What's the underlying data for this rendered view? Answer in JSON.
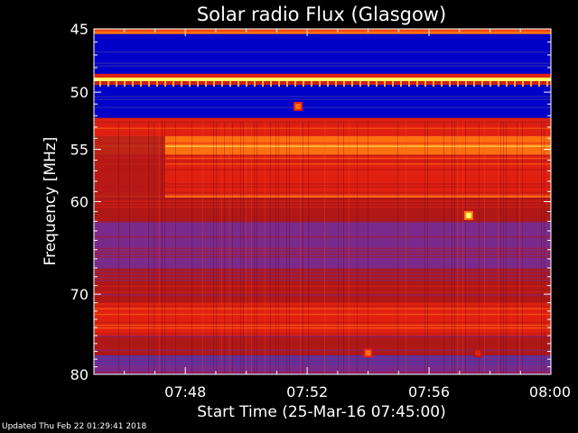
{
  "footer": {
    "updated": "Updated Thu Feb 22 01:29:41 2018"
  },
  "chart_data": {
    "type": "heatmap",
    "title": "Solar radio Flux (Glasgow)",
    "xlabel": "Start Time (25-Mar-16 07:45:00)",
    "ylabel": "Frequency [MHz]",
    "x_range": [
      "07:45:00",
      "08:00:00"
    ],
    "y_range": [
      45,
      80
    ],
    "y_scale": "log",
    "y_ticks": [
      45,
      50,
      55,
      60,
      70,
      80
    ],
    "x_ticks": [
      "07:48",
      "07:52",
      "07:56",
      "08:00"
    ],
    "x_tick_minutes": [
      48,
      52,
      56,
      60
    ],
    "colormap": [
      "#0000c8",
      "#3a3ab0",
      "#7a2a8a",
      "#b01818",
      "#e02010",
      "#ff7010",
      "#ffff60"
    ],
    "bands": [
      {
        "from": 45.0,
        "to": 45.4,
        "level": 0.75
      },
      {
        "from": 45.4,
        "to": 48.5,
        "level": 0.05
      },
      {
        "from": 48.5,
        "to": 48.8,
        "level": 0.7
      },
      {
        "from": 48.8,
        "to": 49.1,
        "level": 1.0
      },
      {
        "from": 49.1,
        "to": 49.4,
        "level": 0.65
      },
      {
        "from": 49.4,
        "to": 52.2,
        "level": 0.05
      },
      {
        "from": 52.2,
        "to": 52.8,
        "level": 0.6
      },
      {
        "from": 52.8,
        "to": 53.8,
        "level": 0.72
      },
      {
        "from": 53.8,
        "to": 55.5,
        "level": 0.85
      },
      {
        "from": 55.5,
        "to": 59.3,
        "level": 0.62
      },
      {
        "from": 59.3,
        "to": 59.6,
        "level": 0.9
      },
      {
        "from": 59.6,
        "to": 62.0,
        "level": 0.55
      },
      {
        "from": 62.0,
        "to": 64.5,
        "level": 0.4
      },
      {
        "from": 64.5,
        "to": 67.0,
        "level": 0.3
      },
      {
        "from": 67.0,
        "to": 69.0,
        "level": 0.42
      },
      {
        "from": 69.0,
        "to": 71.0,
        "level": 0.55
      },
      {
        "from": 71.0,
        "to": 75.0,
        "level": 0.7
      },
      {
        "from": 75.0,
        "to": 77.5,
        "level": 0.45
      },
      {
        "from": 77.5,
        "to": 80.0,
        "level": 0.3
      }
    ],
    "bursts": [
      {
        "time_min": 57.3,
        "freq": 61.4,
        "level": 1.0
      },
      {
        "time_min": 51.7,
        "freq": 51.2,
        "level": 0.8
      },
      {
        "time_min": 54.0,
        "freq": 77.2,
        "level": 0.75
      },
      {
        "time_min": 57.6,
        "freq": 77.2,
        "level": 0.7
      }
    ]
  }
}
